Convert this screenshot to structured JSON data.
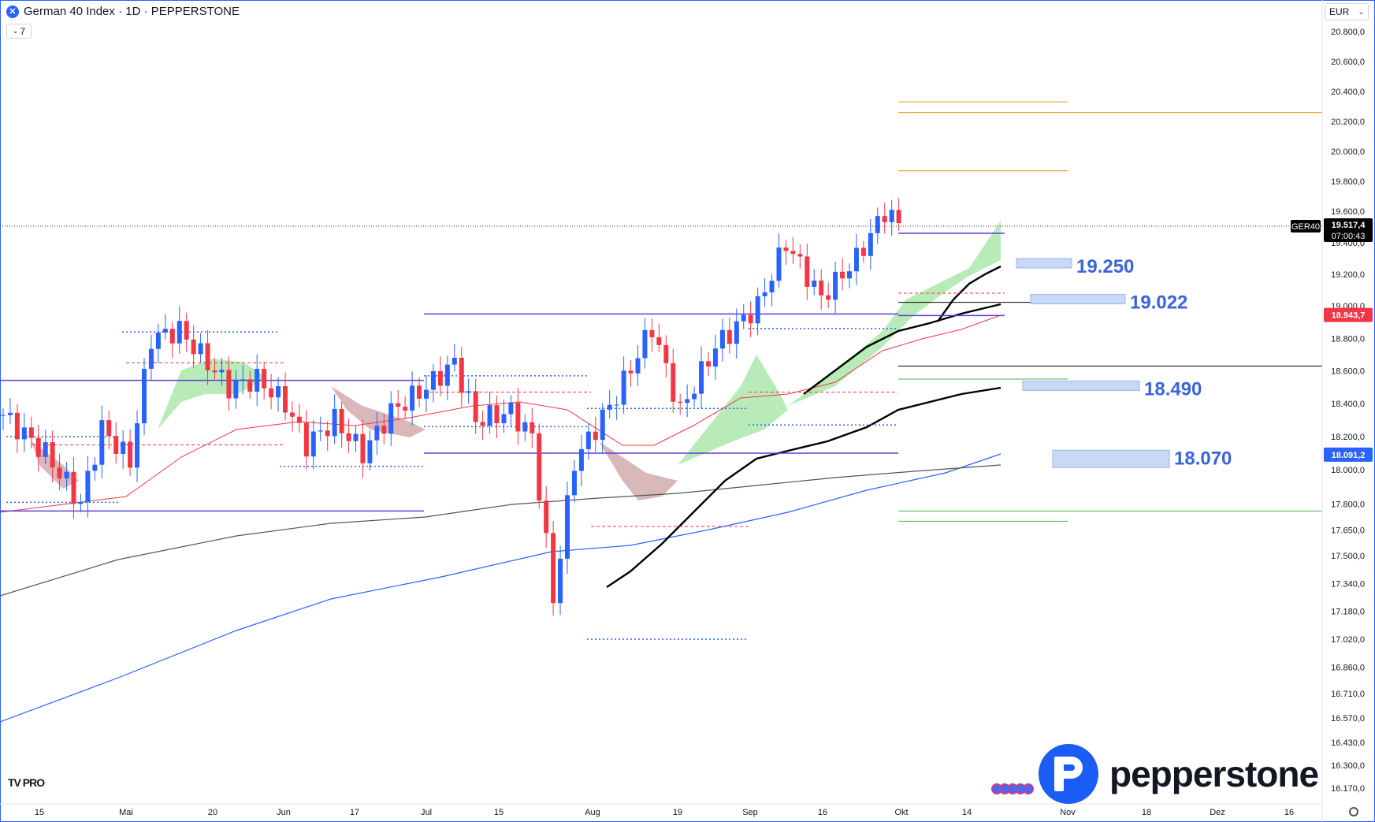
{
  "header": {
    "symbol_title": "German 40 Index · 1D · PEPPERSTONE",
    "indicator_toggle": "7",
    "currency": "EUR"
  },
  "branding": {
    "tv_logo": "TV PRO",
    "pepperstone": "pepperstone"
  },
  "chart_data": {
    "type": "candlestick",
    "title": "",
    "yaxis_side": "right",
    "price_ticks": [
      "20.800,0",
      "20.600,0",
      "20.400,0",
      "20.200,0",
      "20.000,0",
      "19.800,0",
      "19.600,0",
      "19.400,0",
      "19.200,0",
      "19.000,0",
      "18.800,0",
      "18.600,0",
      "18.400,0",
      "18.200,0",
      "18.000,0",
      "17.800,0",
      "17.650,0",
      "17.500,0",
      "17.340,0",
      "17.180,0",
      "17.020,0",
      "16.860,0",
      "16.710,0",
      "16.570,0",
      "16.430,0",
      "16.300,0",
      "16.170,0"
    ],
    "x_ticks": [
      "15",
      "Mai",
      "20",
      "Jun",
      "17",
      "Jul",
      "15",
      "Aug",
      "19",
      "Sep",
      "16",
      "Okt",
      "14",
      "Nov",
      "18",
      "Dez",
      "16"
    ],
    "last_price": {
      "symbol": "GER40",
      "value": "19.517,4",
      "countdown": "07:00:43",
      "color": "#000000"
    },
    "price_labels": [
      {
        "value": "18.943,7",
        "color": "#f23645"
      },
      {
        "value": "18.091,2",
        "color": "#2962ff"
      }
    ],
    "key_levels": [
      {
        "label": "19.250",
        "price": 19250
      },
      {
        "label": "19.022",
        "price": 19022
      },
      {
        "label": "18.490",
        "price": 18490
      },
      {
        "label": "18.070",
        "price": 18070
      }
    ],
    "colors": {
      "up": "#2962ff",
      "down": "#f23645",
      "ema_fast": "#000000",
      "sma50": "#f23645",
      "sma200": "#2962ff",
      "cloud_up": "#9be39b",
      "cloud_down": "#c79a9a",
      "levels": "#5b3fd6",
      "targets": "#e0a020",
      "support": "#4caf50"
    }
  }
}
